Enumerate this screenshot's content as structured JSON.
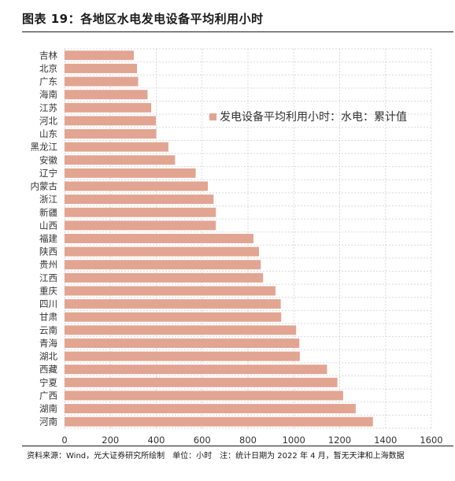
{
  "title": "图表 19：各地区水电发电设备平均利用小时",
  "footer": "资料来源：Wind，光大证券研究所绘制　单位：小时　注：统计日期为 2022 年 4 月，暂无天津和上海数据",
  "colors": {
    "bar": "#e2a592",
    "grid": "#d9d9d9",
    "text": "#333333"
  },
  "chart_data": {
    "type": "bar",
    "orientation": "horizontal",
    "categories": [
      "吉林",
      "北京",
      "广东",
      "海南",
      "江苏",
      "河北",
      "山东",
      "黑龙江",
      "安徽",
      "辽宁",
      "内蒙古",
      "浙江",
      "新疆",
      "山西",
      "福建",
      "陕西",
      "贵州",
      "江西",
      "重庆",
      "四川",
      "甘肃",
      "云南",
      "青海",
      "湖北",
      "西藏",
      "宁夏",
      "广西",
      "湖南",
      "河南"
    ],
    "series": [
      {
        "name": "发电设备平均利用小时：水电：累计值",
        "values": [
          302,
          316,
          321,
          362,
          378,
          398,
          400,
          453,
          482,
          572,
          625,
          650,
          660,
          660,
          824,
          848,
          856,
          866,
          920,
          943,
          945,
          1010,
          1024,
          1026,
          1145,
          1190,
          1215,
          1270,
          1345
        ]
      }
    ],
    "xlim": [
      0,
      1600
    ],
    "xticks": [
      0,
      200,
      400,
      600,
      800,
      1000,
      1200,
      1400,
      1600
    ],
    "grid": true,
    "legend_position": "right-top"
  }
}
